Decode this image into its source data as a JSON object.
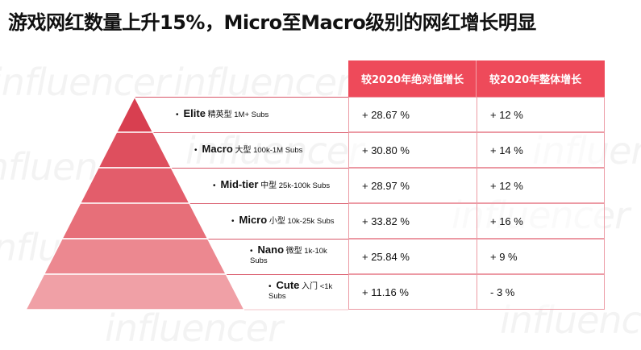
{
  "title": "游戏网红数量上升15%，Micro至Macro级别的网红增长明显",
  "watermark_text": "influencer",
  "colors": {
    "header_bg": "#ee4a5a",
    "table_border": "#ec9aa4",
    "line_color": "#d9596a",
    "layers": [
      "#d83f50",
      "#de4f5e",
      "#e35d6b",
      "#e76f79",
      "#ec8890",
      "#f0a0a6"
    ]
  },
  "table": {
    "headers": [
      "较2020年绝对值增长",
      "较2020年整体增长"
    ]
  },
  "tiers": [
    {
      "name": "Elite",
      "cn": "精英型",
      "range": "1M+ Subs",
      "subs_wrap": false,
      "abs_growth": "+ 28.67 %",
      "overall_growth": "+ 12 %"
    },
    {
      "name": "Macro",
      "cn": "大型",
      "range": "100k-1M Subs",
      "subs_wrap": false,
      "abs_growth": "+ 30.80 %",
      "overall_growth": "+ 14 %"
    },
    {
      "name": "Mid-tier",
      "cn": "中型",
      "range": "25k-100k Subs",
      "subs_wrap": false,
      "abs_growth": "+ 28.97 %",
      "overall_growth": "+ 12 %"
    },
    {
      "name": "Micro",
      "cn": "小型",
      "range": "10k-25k Subs",
      "subs_wrap": false,
      "abs_growth": "+ 33.82 %",
      "overall_growth": "+ 16 %"
    },
    {
      "name": "Nano",
      "cn": "微型",
      "range": "1k-10k",
      "range2": "Subs",
      "subs_wrap": true,
      "abs_growth": "+ 25.84 %",
      "overall_growth": "+ 9 %"
    },
    {
      "name": "Cute",
      "cn": "入门",
      "range": "<1k",
      "range2": "Subs",
      "subs_wrap": true,
      "abs_growth": "+ 11.16 %",
      "overall_growth": "- 3 %"
    }
  ]
}
